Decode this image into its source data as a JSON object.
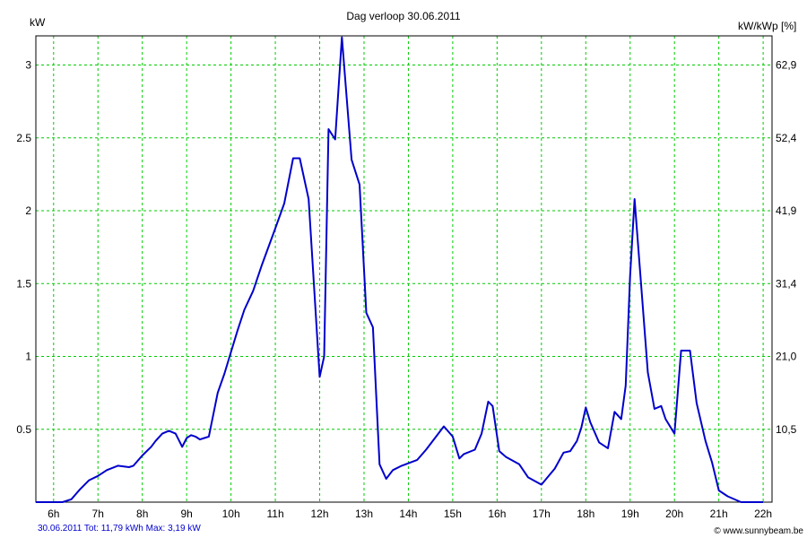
{
  "chart_data": {
    "type": "line",
    "title": "Dag  verloop 30.06.2011",
    "ylabel_left": "kW",
    "ylabel_right": "kW/kWp [%]",
    "xlabel": "",
    "x_ticks": [
      "6h",
      "7h",
      "8h",
      "9h",
      "10h",
      "11h",
      "12h",
      "13h",
      "14h",
      "15h",
      "16h",
      "17h",
      "18h",
      "19h",
      "20h",
      "21h",
      "22h"
    ],
    "y_ticks_left": [
      "0.5",
      "1",
      "1.5",
      "2",
      "2.5",
      "3"
    ],
    "y_ticks_right": [
      "10,5",
      "21,0",
      "31,4",
      "41,9",
      "52,4",
      "62,9"
    ],
    "xlim": [
      5.6,
      22.2
    ],
    "ylim": [
      0,
      3.2
    ],
    "grid": true,
    "line_color": "#0000cc",
    "grid_color": "#00cc00",
    "series": [
      {
        "x": [
          5.6,
          6.0,
          6.2,
          6.4,
          6.6,
          6.8,
          7.0,
          7.2,
          7.45,
          7.7,
          7.8,
          8.0,
          8.2,
          8.3,
          8.45,
          8.6,
          8.75,
          8.9,
          9.0,
          9.1,
          9.2,
          9.3,
          9.4,
          9.5,
          9.7,
          9.85,
          10.0,
          10.15,
          10.3,
          10.5,
          10.7,
          11.0,
          11.2,
          11.4,
          11.55,
          11.75,
          12.0,
          12.1,
          12.2,
          12.35,
          12.5,
          12.72,
          12.9,
          13.05,
          13.2,
          13.35,
          13.5,
          13.65,
          13.85,
          14.2,
          14.4,
          14.8,
          15.0,
          15.15,
          15.25,
          15.5,
          15.65,
          15.8,
          15.9,
          16.05,
          16.2,
          16.5,
          16.7,
          17.0,
          17.3,
          17.5,
          17.65,
          17.8,
          17.9,
          18.0,
          18.1,
          18.3,
          18.5,
          18.65,
          18.8,
          18.9,
          19.0,
          19.1,
          19.4,
          19.55,
          19.7,
          19.8,
          20.0,
          20.15,
          20.35,
          20.5,
          20.7,
          20.85,
          21.0,
          21.2,
          21.5,
          21.75,
          22.0
        ],
        "values": [
          0,
          0,
          0,
          0.02,
          0.09,
          0.15,
          0.18,
          0.22,
          0.25,
          0.24,
          0.25,
          0.32,
          0.38,
          0.42,
          0.47,
          0.49,
          0.47,
          0.38,
          0.44,
          0.46,
          0.45,
          0.43,
          0.44,
          0.45,
          0.75,
          0.88,
          1.03,
          1.18,
          1.32,
          1.45,
          1.63,
          1.88,
          2.05,
          2.36,
          2.36,
          2.08,
          0.86,
          1.0,
          2.56,
          2.49,
          3.19,
          2.35,
          2.18,
          1.3,
          1.2,
          0.26,
          0.16,
          0.22,
          0.25,
          0.29,
          0.36,
          0.52,
          0.45,
          0.3,
          0.33,
          0.36,
          0.47,
          0.69,
          0.66,
          0.35,
          0.31,
          0.26,
          0.17,
          0.12,
          0.23,
          0.34,
          0.35,
          0.42,
          0.51,
          0.65,
          0.55,
          0.41,
          0.37,
          0.62,
          0.57,
          0.8,
          1.55,
          2.08,
          0.89,
          0.64,
          0.66,
          0.57,
          0.47,
          1.04,
          1.04,
          0.68,
          0.42,
          0.27,
          0.08,
          0.04,
          0,
          0,
          0
        ]
      }
    ]
  },
  "footer": {
    "summary": "30.06.2011 Tot: 11,79 kWh Max: 3,19 kW",
    "credit": "© www.sunnybeam.be"
  }
}
